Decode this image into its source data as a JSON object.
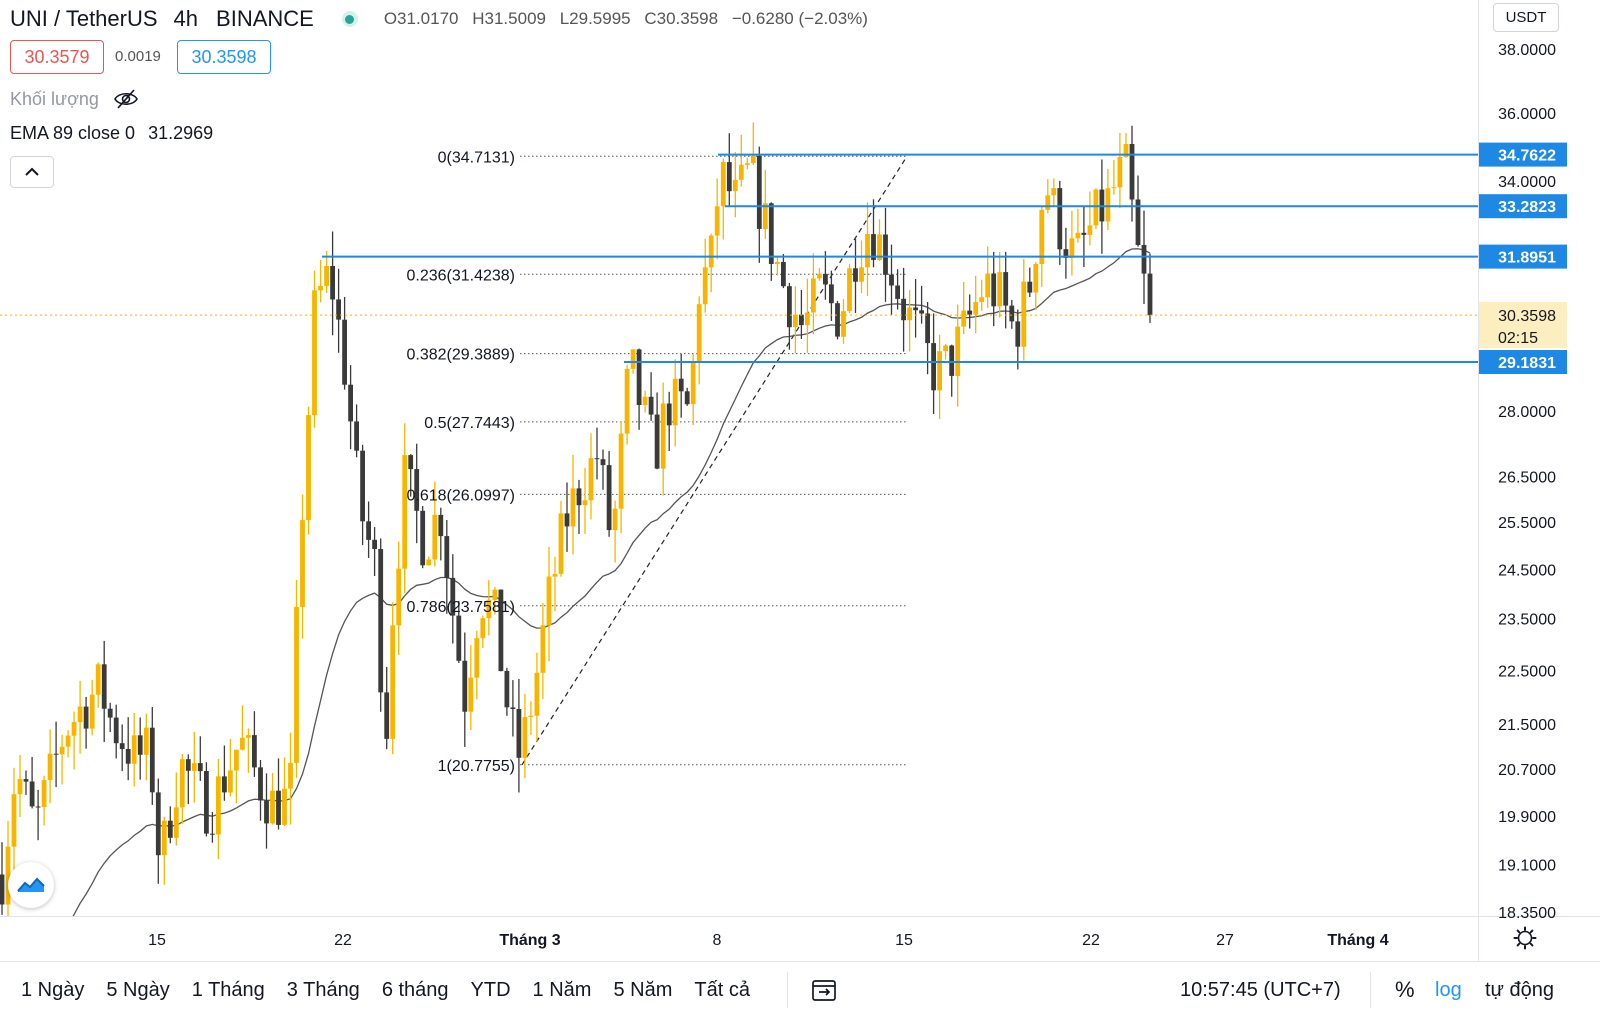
{
  "header": {
    "symbol": "UNI / TetherUS",
    "interval": "4h",
    "exchange": "BINANCE",
    "status_color": "#26a69a",
    "open": "O31.0170",
    "high": "H31.5009",
    "low": "L29.5995",
    "close": "C30.3598",
    "change": "−0.6280 (−2.03%)"
  },
  "trade": {
    "sell_price": "30.3579",
    "spread": "0.0019",
    "buy_price": "30.3598"
  },
  "indicators": {
    "volume_label": "Khối lượng",
    "volume_hidden_icon": "eye-off-icon",
    "ema_label": "EMA 89 close 0",
    "ema_value": "31.2969",
    "collapse_icon": "chevron-up-icon"
  },
  "currency": "USDT",
  "colors": {
    "up": "#f7b500",
    "down": "#3a3a3a",
    "hline": "#1e88e5",
    "sell": "#ef5350",
    "buy": "#2196f3",
    "ema": "#555555"
  },
  "chart_data": {
    "type": "candlestick",
    "scale": "log",
    "ylim": [
      18.35,
      39.0
    ],
    "y_ticks": [
      "38.0000",
      "36.0000",
      "34.0000",
      "28.0000",
      "26.5000",
      "25.5000",
      "24.5000",
      "23.5000",
      "22.5000",
      "21.5000",
      "20.7000",
      "19.9000",
      "19.1000",
      "18.3500"
    ],
    "x_ticks": [
      "15",
      "22",
      "Tháng 3",
      "8",
      "15",
      "22",
      "27",
      "Tháng 4"
    ],
    "anchors": [
      {
        "x": 0,
        "y": 18.7
      },
      {
        "x": 16,
        "y": 20.7
      },
      {
        "x": 35,
        "y": 19.7
      },
      {
        "x": 65,
        "y": 21.4
      },
      {
        "x": 86,
        "y": 21.9
      },
      {
        "x": 100,
        "y": 22.2
      },
      {
        "x": 112,
        "y": 21.5
      },
      {
        "x": 135,
        "y": 20.9
      },
      {
        "x": 150,
        "y": 21.0
      },
      {
        "x": 160,
        "y": 19.1
      },
      {
        "x": 180,
        "y": 20.8
      },
      {
        "x": 210,
        "y": 20.0
      },
      {
        "x": 240,
        "y": 21.2
      },
      {
        "x": 270,
        "y": 20.1
      },
      {
        "x": 290,
        "y": 20.2
      },
      {
        "x": 300,
        "y": 25.0
      },
      {
        "x": 315,
        "y": 30.6
      },
      {
        "x": 330,
        "y": 31.5
      },
      {
        "x": 345,
        "y": 29.0
      },
      {
        "x": 360,
        "y": 25.8
      },
      {
        "x": 376,
        "y": 24.5
      },
      {
        "x": 385,
        "y": 21.0
      },
      {
        "x": 393,
        "y": 23.8
      },
      {
        "x": 405,
        "y": 26.5
      },
      {
        "x": 425,
        "y": 25.0
      },
      {
        "x": 440,
        "y": 25.8
      },
      {
        "x": 455,
        "y": 23.3
      },
      {
        "x": 465,
        "y": 22.0
      },
      {
        "x": 480,
        "y": 24.0
      },
      {
        "x": 495,
        "y": 23.5
      },
      {
        "x": 510,
        "y": 21.5
      },
      {
        "x": 520,
        "y": 20.9
      },
      {
        "x": 533,
        "y": 22.0
      },
      {
        "x": 548,
        "y": 23.8
      },
      {
        "x": 565,
        "y": 25.5
      },
      {
        "x": 580,
        "y": 26.3
      },
      {
        "x": 598,
        "y": 27.0
      },
      {
        "x": 612,
        "y": 25.0
      },
      {
        "x": 630,
        "y": 29.2
      },
      {
        "x": 640,
        "y": 28.2
      },
      {
        "x": 655,
        "y": 27.0
      },
      {
        "x": 668,
        "y": 28.2
      },
      {
        "x": 690,
        "y": 28.0
      },
      {
        "x": 700,
        "y": 31.3
      },
      {
        "x": 710,
        "y": 31.5
      },
      {
        "x": 720,
        "y": 34.2
      },
      {
        "x": 735,
        "y": 33.4
      },
      {
        "x": 750,
        "y": 34.3
      },
      {
        "x": 770,
        "y": 32.3
      },
      {
        "x": 785,
        "y": 31.0
      },
      {
        "x": 803,
        "y": 30.0
      },
      {
        "x": 820,
        "y": 31.0
      },
      {
        "x": 840,
        "y": 30.3
      },
      {
        "x": 855,
        "y": 32.0
      },
      {
        "x": 870,
        "y": 32.8
      },
      {
        "x": 888,
        "y": 31.8
      },
      {
        "x": 905,
        "y": 30.5
      },
      {
        "x": 920,
        "y": 29.8
      },
      {
        "x": 935,
        "y": 28.9
      },
      {
        "x": 950,
        "y": 29.2
      },
      {
        "x": 965,
        "y": 30.0
      },
      {
        "x": 985,
        "y": 31.2
      },
      {
        "x": 1000,
        "y": 30.8
      },
      {
        "x": 1015,
        "y": 29.9
      },
      {
        "x": 1030,
        "y": 31.2
      },
      {
        "x": 1045,
        "y": 34.0
      },
      {
        "x": 1060,
        "y": 32.7
      },
      {
        "x": 1075,
        "y": 31.8
      },
      {
        "x": 1095,
        "y": 32.9
      },
      {
        "x": 1110,
        "y": 33.5
      },
      {
        "x": 1125,
        "y": 34.5
      },
      {
        "x": 1138,
        "y": 31.9
      },
      {
        "x": 1150,
        "y": 30.36
      }
    ],
    "candle_count": 192,
    "candle_seed": 7,
    "ema_label": "EMA 89 close 0",
    "ema_last": 31.2969,
    "fibonacci": [
      {
        "label": "0(34.7131)",
        "value": 34.7131
      },
      {
        "label": "0.236(31.4238)",
        "value": 31.4238
      },
      {
        "label": "0.382(29.3889)",
        "value": 29.3889
      },
      {
        "label": "0.5(27.7443)",
        "value": 27.7443
      },
      {
        "label": "0.618(26.0997)",
        "value": 26.0997
      },
      {
        "label": "0.786(23.7581)",
        "value": 23.7581
      },
      {
        "label": "1(20.7755)",
        "value": 20.7755
      }
    ],
    "horizontal_levels": [
      {
        "label": "34.7622",
        "value": 34.7622
      },
      {
        "label": "33.2823",
        "value": 33.2823
      },
      {
        "label": "31.8951",
        "value": 31.8951
      },
      {
        "label": "29.1831",
        "value": 29.1831
      }
    ],
    "last_price": {
      "label": "30.3598",
      "value": 30.3598,
      "countdown": "02:15"
    }
  },
  "bottom_bar": {
    "ranges": [
      "1 Ngày",
      "5 Ngày",
      "1 Tháng",
      "3 Tháng",
      "6 tháng",
      "YTD",
      "1 Năm",
      "5 Năm",
      "Tất cả"
    ],
    "compare_icon": "calendar-range-icon",
    "clock": "10:57:45 (UTC+7)",
    "percent": "%",
    "log": "log",
    "auto": "tự động"
  },
  "settings_icon": "gear-icon",
  "logo_icon": "tradingview-logo-icon"
}
